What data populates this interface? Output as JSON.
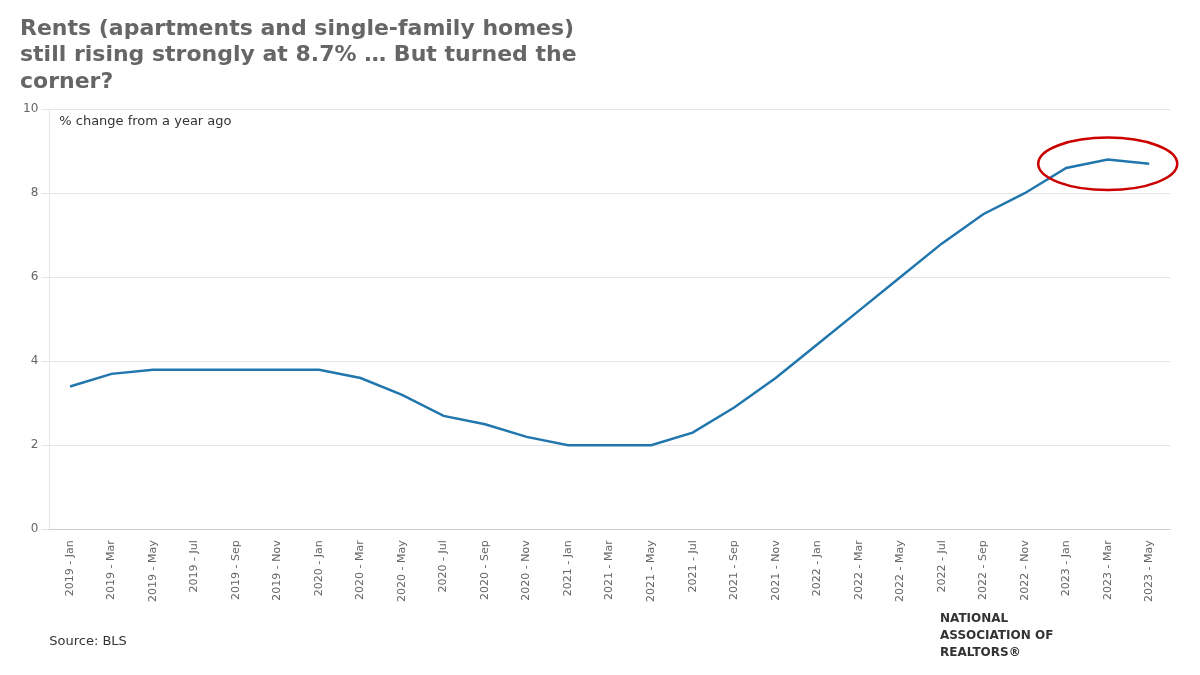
{
  "chart_data": {
    "type": "line",
    "title": "Rents (apartments and single-family homes)\nstill rising strongly at 8.7% … But turned the\ncorner?",
    "annotation": "% change from a year ago",
    "source": "Source: BLS",
    "logo_text": [
      "NATIONAL",
      "ASSOCIATION OF",
      "REALTORS®"
    ],
    "categories": [
      "2019 - Jan",
      "2019 - Mar",
      "2019 - May",
      "2019 - Jul",
      "2019 - Sep",
      "2019 - Nov",
      "2020 - Jan",
      "2020 - Mar",
      "2020 - May",
      "2020 - Jul",
      "2020 - Sep",
      "2020 - Nov",
      "2021 - Jan",
      "2021 - Mar",
      "2021 - May",
      "2021 - Jul",
      "2021 - Sep",
      "2021 - Nov",
      "2022 - Jan",
      "2022 - Mar",
      "2022 - May",
      "2022 - Jul",
      "2022 - Sep",
      "2022 - Nov",
      "2023 - Jan",
      "2023 - Mar",
      "2023 - May"
    ],
    "values": [
      3.4,
      3.7,
      3.8,
      3.8,
      3.8,
      3.8,
      3.8,
      3.6,
      3.2,
      2.7,
      2.5,
      2.2,
      2.0,
      2.0,
      2.0,
      2.3,
      2.9,
      3.6,
      4.4,
      5.2,
      6.0,
      6.8,
      7.5,
      8.0,
      8.6,
      8.8,
      8.7
    ],
    "color": "#2176AE",
    "ylim": [
      0,
      10
    ],
    "yticks": [
      0,
      2,
      4,
      6,
      8,
      10
    ],
    "grid": true,
    "highlight": {
      "categories": [
        "2023 - Jan",
        "2023 - May"
      ],
      "color": "#CC0000"
    }
  }
}
